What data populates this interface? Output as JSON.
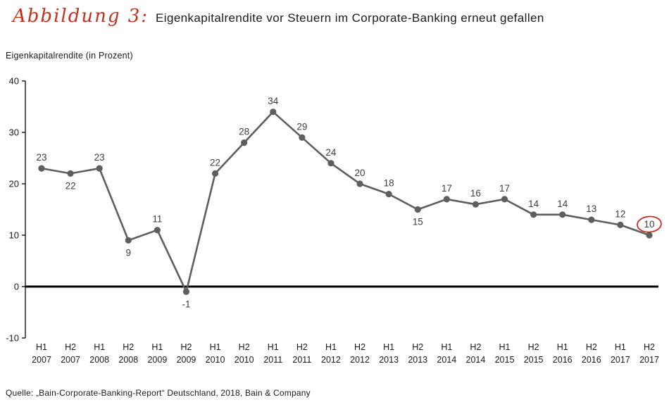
{
  "header": {
    "figure_label": "Abbildung 3:",
    "title": "Eigenkapitalrendite vor Steuern im Corporate-Banking erneut gefallen"
  },
  "source": "Quelle: „Bain-Corporate-Banking-Report“ Deutschland, 2018, Bain & Company",
  "chart_data": {
    "type": "line",
    "title": "Eigenkapitalrendite vor Steuern im Corporate-Banking erneut gefallen",
    "ylabel": "Eigenkapitalrendite (in Prozent)",
    "xlabel": "",
    "categories": [
      "H1 2007",
      "H2 2007",
      "H1 2008",
      "H2 2008",
      "H1 2009",
      "H2 2009",
      "H1 2010",
      "H2 2010",
      "H1 2011",
      "H2 2011",
      "H1 2012",
      "H2 2012",
      "H1 2013",
      "H2 2013",
      "H1 2014",
      "H2 2014",
      "H1 2015",
      "H2 2015",
      "H1 2016",
      "H2 2016",
      "H1 2017",
      "H2 2017"
    ],
    "values": [
      23,
      22,
      23,
      9,
      11,
      -1,
      22,
      28,
      34,
      29,
      24,
      20,
      18,
      15,
      17,
      16,
      17,
      14,
      14,
      13,
      12,
      10
    ],
    "label_positions": [
      "above",
      "below",
      "above",
      "below",
      "above",
      "below",
      "above",
      "above",
      "above",
      "above",
      "above",
      "above",
      "above",
      "below",
      "above",
      "above",
      "above",
      "above",
      "above",
      "above",
      "above",
      "above"
    ],
    "ylim": [
      -10,
      40
    ],
    "yticks": [
      -10,
      0,
      10,
      20,
      30,
      40
    ],
    "grid": "off",
    "legend": "none",
    "line_color": "#5e5e5e",
    "marker_color": "#5e5e5e",
    "label_color": "#3d3d3d",
    "axis_color": "#000000",
    "highlight_last": true,
    "highlight_color": "#d0241a"
  }
}
